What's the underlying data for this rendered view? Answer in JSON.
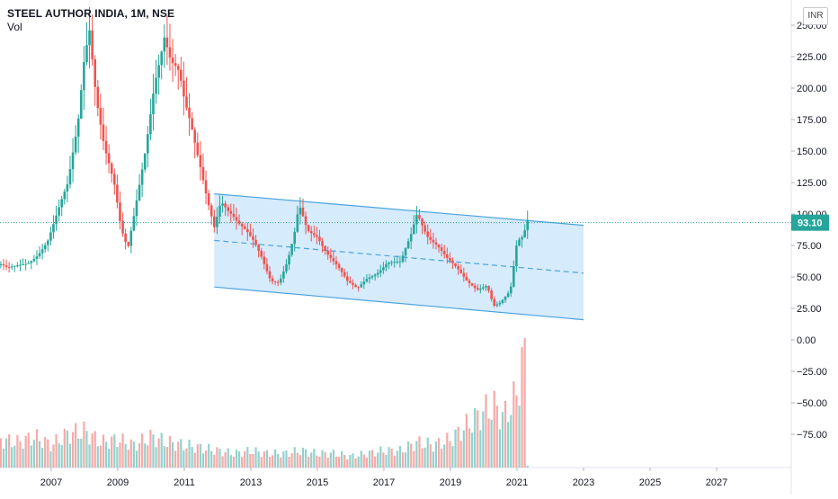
{
  "header": {
    "symbol_line": "STEEL AUTHOR INDIA, 1M, NSE",
    "volume_label": "Vol"
  },
  "currency_badge": "INR",
  "price_badge": "93.10",
  "colors": {
    "up": "#26a69a",
    "down": "#ef5350",
    "channel_line": "#4aa3df",
    "channel_fill": "#cfe8fb",
    "price_line": "#26a69a",
    "axis_text": "#131722"
  },
  "chart_data": {
    "type": "candlestick",
    "title": "STEEL AUTHOR INDIA, 1M, NSE",
    "ylim": [
      -100,
      262
    ],
    "y_ticks": [
      250,
      225,
      200,
      175,
      150,
      125,
      100,
      75,
      50,
      25,
      0,
      -25,
      -50,
      -75
    ],
    "y_tick_labels": [
      "250.00",
      "225.00",
      "200.00",
      "175.00",
      "150.00",
      "125.00",
      "100.00",
      "75.00",
      "50.00",
      "25.00",
      "0.00",
      "−25.00",
      "−50.00",
      "−75.00"
    ],
    "x_ticks": [
      2007,
      2009,
      2011,
      2013,
      2015,
      2017,
      2019,
      2021,
      2023,
      2025,
      2027
    ],
    "x_tick_labels": [
      "2007",
      "2009",
      "2011",
      "2013",
      "2015",
      "2017",
      "2019",
      "2021",
      "2023",
      "2025",
      "2027"
    ],
    "last_price": 93.1,
    "channel": {
      "upper": {
        "from": [
          2011.9,
          116
        ],
        "to": [
          2023.0,
          91
        ]
      },
      "lower": {
        "from": [
          2011.9,
          42
        ],
        "to": [
          2023.0,
          16
        ]
      },
      "mid": {
        "from": [
          2011.9,
          79
        ],
        "to": [
          2023.0,
          53
        ]
      }
    },
    "price_path": [
      [
        2005.4,
        60
      ],
      [
        2005.7,
        55
      ],
      [
        2006.0,
        58
      ],
      [
        2006.3,
        62
      ],
      [
        2006.6,
        70
      ],
      [
        2006.9,
        80
      ],
      [
        2007.2,
        100
      ],
      [
        2007.5,
        120
      ],
      [
        2007.8,
        170
      ],
      [
        2008.0,
        230
      ],
      [
        2008.15,
        255
      ],
      [
        2008.35,
        200
      ],
      [
        2008.6,
        155
      ],
      [
        2008.9,
        120
      ],
      [
        2009.1,
        85
      ],
      [
        2009.3,
        70
      ],
      [
        2009.5,
        100
      ],
      [
        2009.8,
        150
      ],
      [
        2010.1,
        210
      ],
      [
        2010.4,
        240
      ],
      [
        2010.6,
        215
      ],
      [
        2010.85,
        205
      ],
      [
        2011.0,
        185
      ],
      [
        2011.2,
        170
      ],
      [
        2011.5,
        140
      ],
      [
        2011.7,
        115
      ],
      [
        2011.9,
        92
      ],
      [
        2012.1,
        110
      ],
      [
        2012.3,
        100
      ],
      [
        2012.6,
        90
      ],
      [
        2012.9,
        85
      ],
      [
        2013.1,
        80
      ],
      [
        2013.3,
        70
      ],
      [
        2013.6,
        48
      ],
      [
        2013.85,
        45
      ],
      [
        2014.1,
        60
      ],
      [
        2014.3,
        80
      ],
      [
        2014.45,
        105
      ],
      [
        2014.7,
        88
      ],
      [
        2015.0,
        85
      ],
      [
        2015.3,
        70
      ],
      [
        2015.6,
        58
      ],
      [
        2015.9,
        45
      ],
      [
        2016.2,
        40
      ],
      [
        2016.5,
        50
      ],
      [
        2016.8,
        55
      ],
      [
        2017.1,
        62
      ],
      [
        2017.5,
        60
      ],
      [
        2017.8,
        80
      ],
      [
        2018.0,
        100
      ],
      [
        2018.3,
        85
      ],
      [
        2018.6,
        78
      ],
      [
        2018.9,
        65
      ],
      [
        2019.2,
        55
      ],
      [
        2019.5,
        45
      ],
      [
        2019.8,
        40
      ],
      [
        2020.1,
        45
      ],
      [
        2020.3,
        28
      ],
      [
        2020.5,
        30
      ],
      [
        2020.8,
        38
      ],
      [
        2021.0,
        75
      ],
      [
        2021.2,
        80
      ],
      [
        2021.3,
        94
      ],
      [
        2021.35,
        93.1
      ]
    ],
    "volume": [
      [
        2005.4,
        10
      ],
      [
        2006.0,
        9
      ],
      [
        2006.5,
        11
      ],
      [
        2007.0,
        8
      ],
      [
        2007.5,
        12
      ],
      [
        2008.0,
        13
      ],
      [
        2008.5,
        9
      ],
      [
        2009.0,
        10
      ],
      [
        2009.5,
        8
      ],
      [
        2010.0,
        11
      ],
      [
        2010.5,
        9
      ],
      [
        2011.0,
        8
      ],
      [
        2011.5,
        7
      ],
      [
        2012.0,
        6
      ],
      [
        2012.5,
        5
      ],
      [
        2013.0,
        6
      ],
      [
        2013.5,
        5
      ],
      [
        2014.0,
        5
      ],
      [
        2014.5,
        6
      ],
      [
        2015.0,
        5
      ],
      [
        2015.5,
        5
      ],
      [
        2016.0,
        4
      ],
      [
        2016.5,
        5
      ],
      [
        2017.0,
        6
      ],
      [
        2017.5,
        6
      ],
      [
        2018.0,
        9
      ],
      [
        2018.5,
        8
      ],
      [
        2019.0,
        10
      ],
      [
        2019.5,
        15
      ],
      [
        2020.0,
        20
      ],
      [
        2020.3,
        22
      ],
      [
        2020.6,
        18
      ],
      [
        2021.0,
        26
      ],
      [
        2021.2,
        42
      ],
      [
        2021.3,
        30
      ]
    ]
  }
}
